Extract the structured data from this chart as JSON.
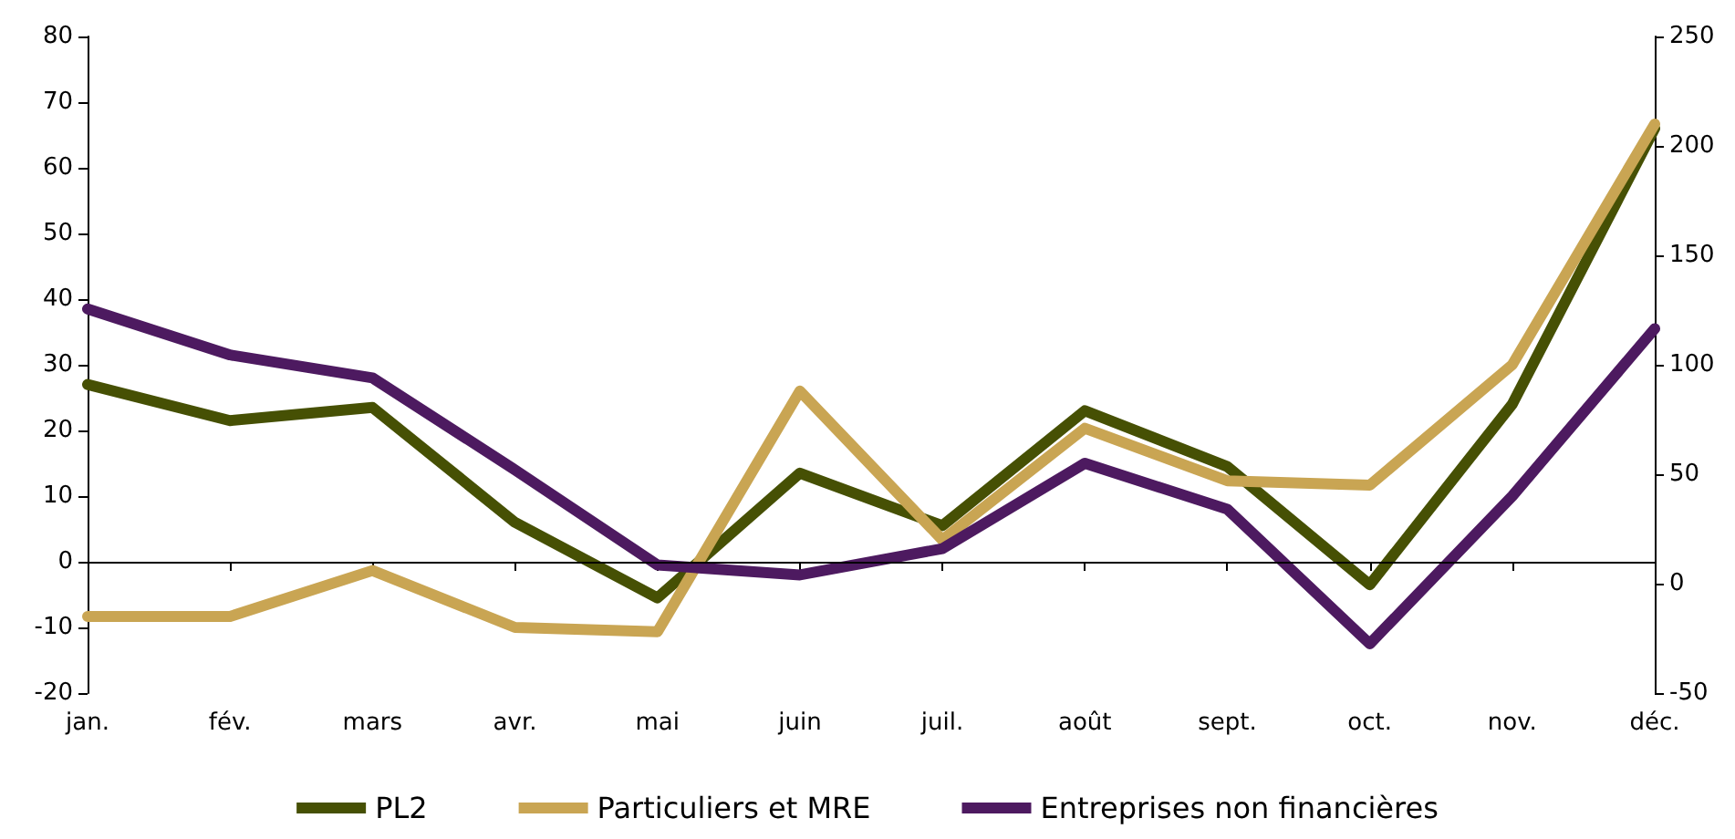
{
  "chart_data": {
    "type": "line",
    "categories": [
      "jan.",
      "fév.",
      "mars",
      "avr.",
      "mai",
      "juin",
      "juil.",
      "août",
      "sept.",
      "oct.",
      "nov.",
      "déc."
    ],
    "series": [
      {
        "name": "PL2",
        "color": "#465004",
        "values": [
          27,
          21.5,
          23.5,
          6,
          -5.5,
          13.5,
          5.5,
          23,
          14.5,
          -3.5,
          24,
          66
        ]
      },
      {
        "name": "Particuliers et MRE",
        "color": "#c9a553",
        "axis": "y2",
        "values": [
          -15,
          -15,
          6,
          -20,
          -22,
          88,
          20,
          71,
          47,
          45,
          100,
          210
        ]
      },
      {
        "name": "Entreprises non financières",
        "color": "#4d1a60",
        "values": [
          38.5,
          31.5,
          28,
          14,
          -0.5,
          -2,
          2,
          15,
          8,
          -12.5,
          10,
          35.5
        ]
      }
    ],
    "ylim": [
      -20,
      80
    ],
    "yticks": [
      -20,
      -10,
      0,
      10,
      20,
      30,
      40,
      50,
      60,
      70,
      80
    ],
    "y2lim": [
      -50,
      250
    ],
    "y2ticks": [
      -50,
      0,
      50,
      100,
      150,
      200,
      250
    ],
    "ref_lines": [
      {
        "axis": "y",
        "value": 0,
        "color": "#000000"
      }
    ],
    "grid": false,
    "legend": "bottom",
    "marker": "none",
    "line_style": "solid"
  }
}
